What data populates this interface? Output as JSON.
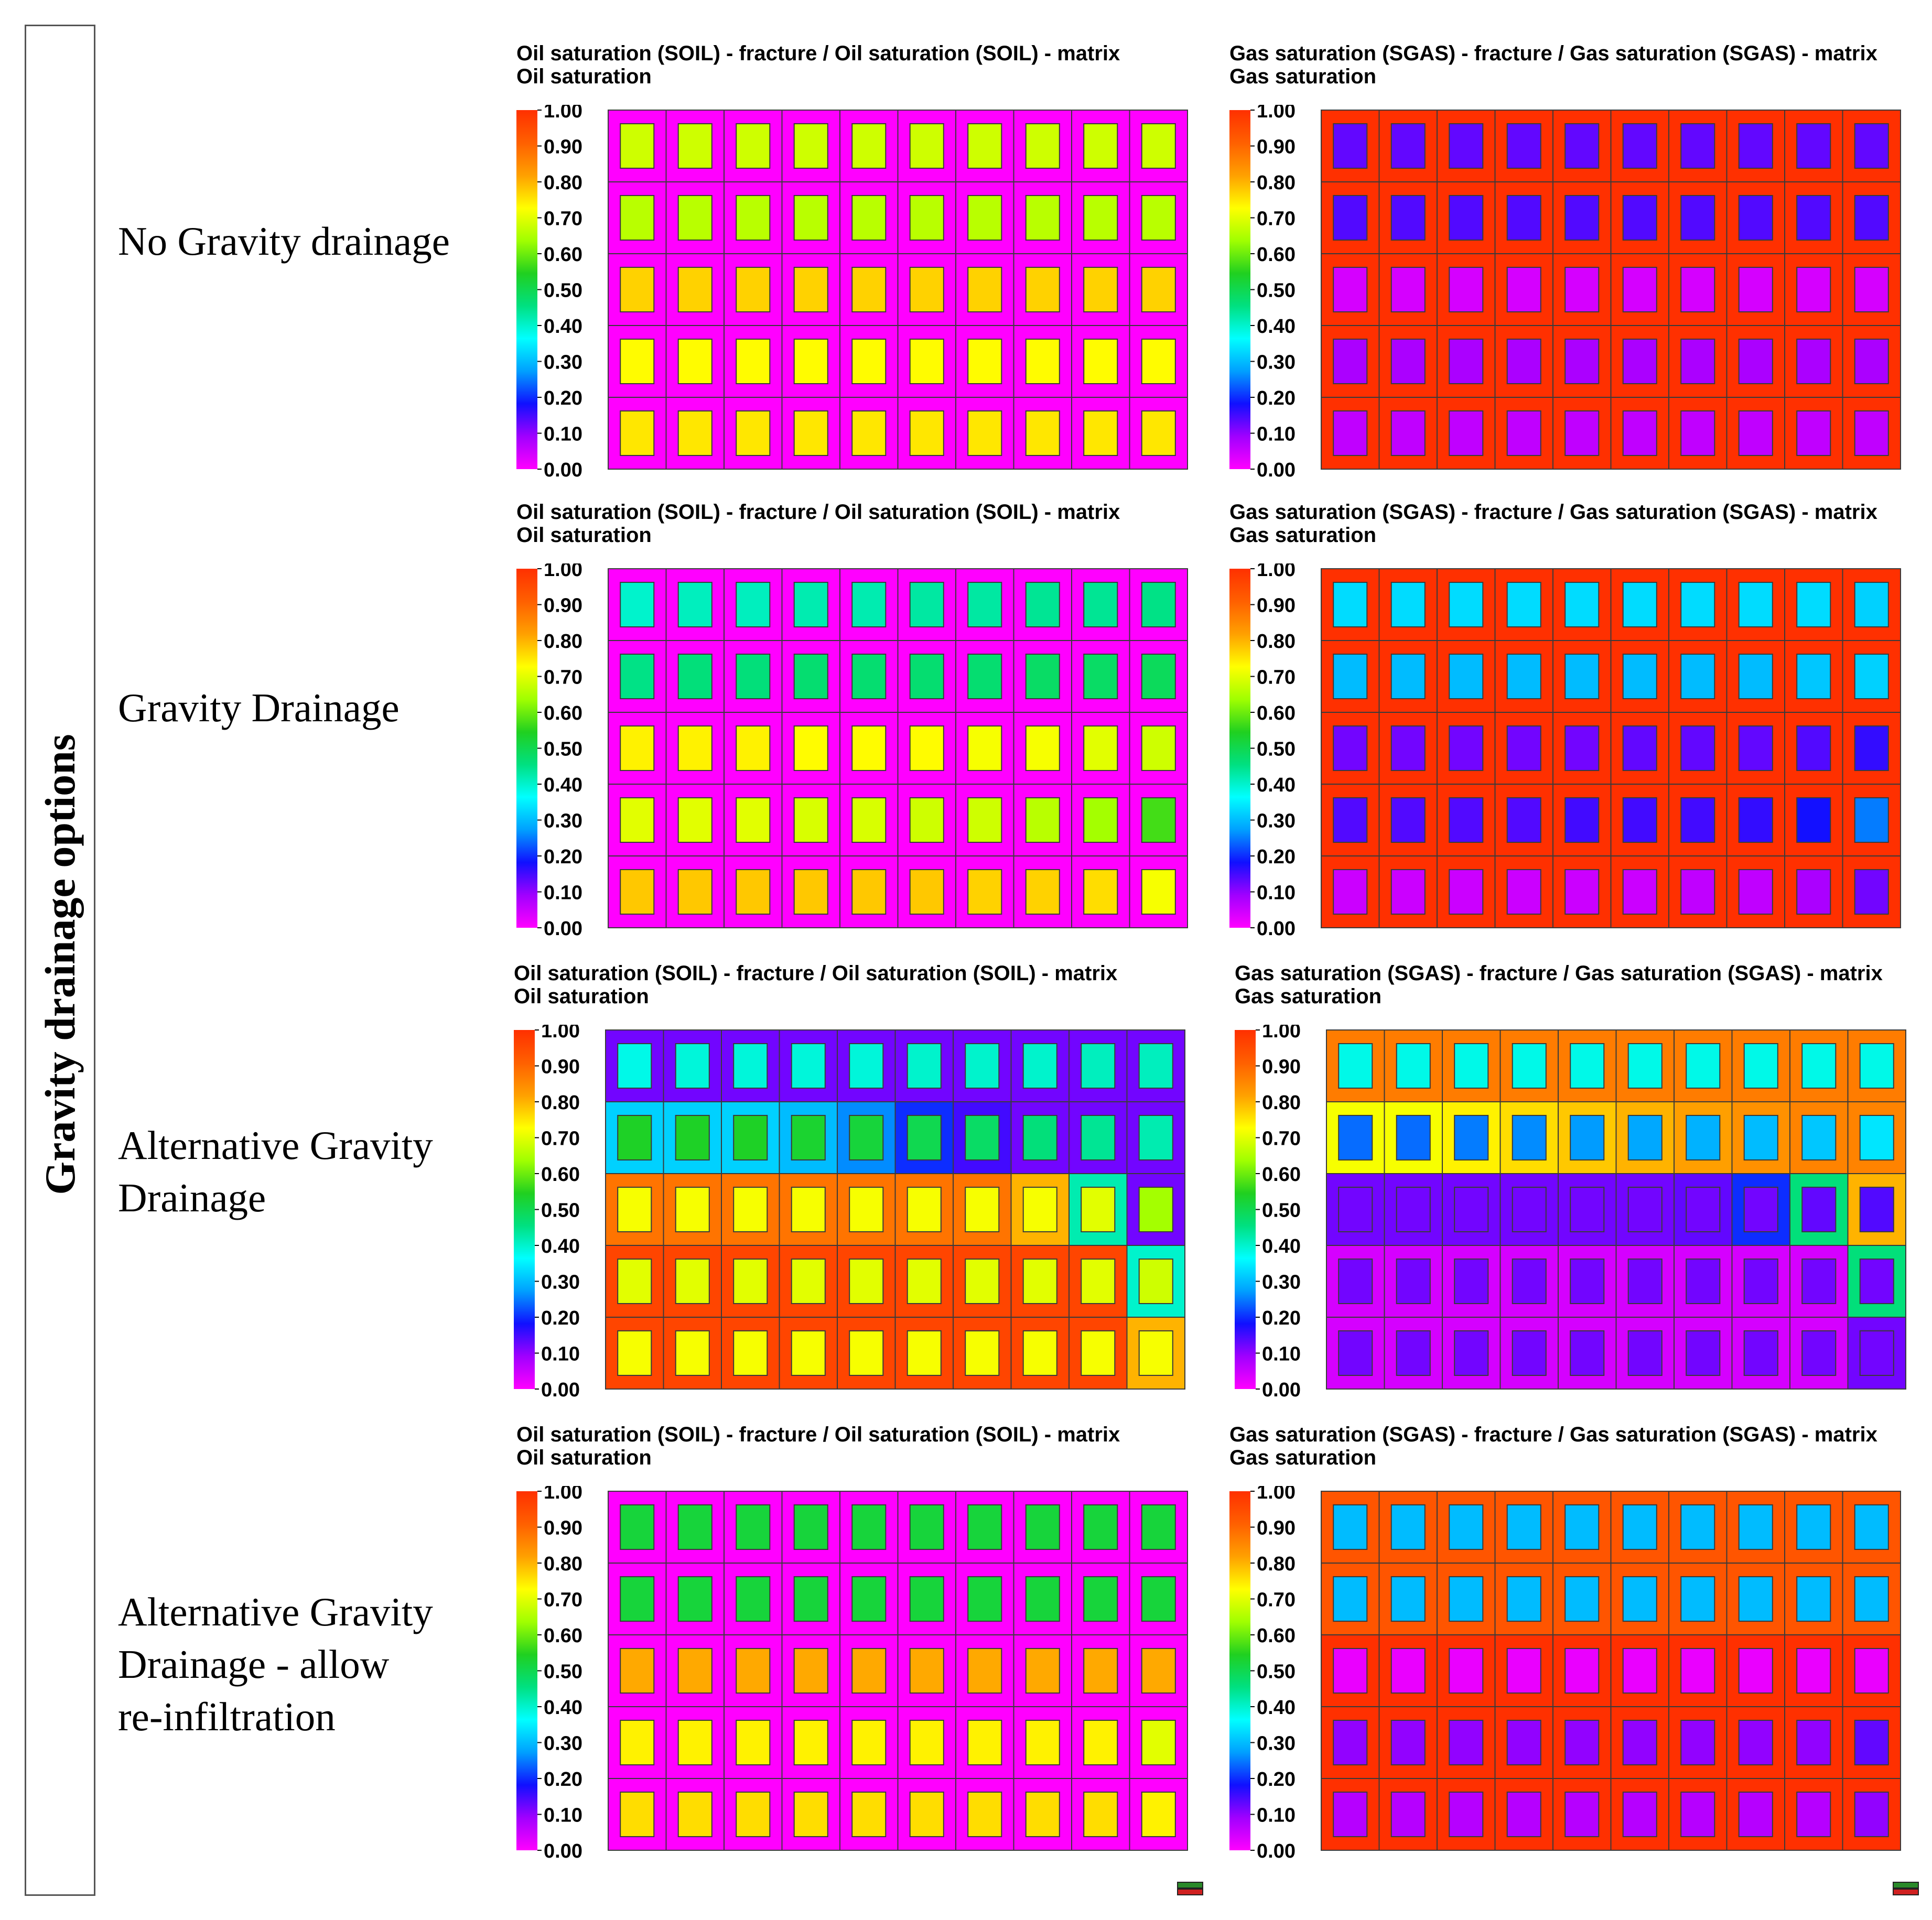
{
  "side_title": "Gravity drainage options",
  "row_labels": [
    "No Gravity drainage",
    "Gravity Drainage",
    "Alternative Gravity\nDrainage",
    "Alternative Gravity\nDrainage - allow\nre-infiltration"
  ],
  "colorbar": {
    "ticks": [
      "1.00",
      "0.90",
      "0.80",
      "0.70",
      "0.60",
      "0.50",
      "0.40",
      "0.30",
      "0.20",
      "0.10",
      "0.00"
    ],
    "stops": [
      "#ff00ff",
      "#a000ff",
      "#1010ff",
      "#00a0ff",
      "#00ffff",
      "#00e080",
      "#20d020",
      "#a0ff00",
      "#ffff00",
      "#ffa000",
      "#ff6000",
      "#ff3000"
    ]
  },
  "chart_data": [
    {
      "type": "heatmap",
      "title": "Oil saturation (SOIL) - fracture / Oil saturation (SOIL) - matrix",
      "subtitle": "Oil saturation",
      "colorbar_range": [
        0,
        1
      ],
      "fracture": [
        [
          0,
          0,
          0,
          0,
          0,
          0,
          0,
          0,
          0,
          0
        ],
        [
          0,
          0,
          0,
          0,
          0,
          0,
          0,
          0,
          0,
          0
        ],
        [
          0,
          0,
          0,
          0,
          0,
          0,
          0,
          0,
          0,
          0
        ],
        [
          0,
          0,
          0,
          0,
          0,
          0,
          0,
          0,
          0,
          0
        ],
        [
          0,
          0,
          0,
          0,
          0,
          0,
          0,
          0,
          0,
          0
        ]
      ],
      "matrix": [
        [
          0.68,
          0.68,
          0.68,
          0.68,
          0.68,
          0.68,
          0.68,
          0.68,
          0.68,
          0.68
        ],
        [
          0.66,
          0.66,
          0.66,
          0.66,
          0.66,
          0.66,
          0.66,
          0.66,
          0.66,
          0.66
        ],
        [
          0.77,
          0.77,
          0.77,
          0.77,
          0.77,
          0.77,
          0.77,
          0.77,
          0.77,
          0.77
        ],
        [
          0.73,
          0.73,
          0.73,
          0.73,
          0.73,
          0.73,
          0.73,
          0.73,
          0.73,
          0.73
        ],
        [
          0.75,
          0.75,
          0.75,
          0.75,
          0.75,
          0.75,
          0.75,
          0.75,
          0.75,
          0.75
        ]
      ]
    },
    {
      "type": "heatmap",
      "title": "Gas saturation (SGAS) - fracture / Gas saturation (SGAS) - matrix",
      "subtitle": "Gas saturation",
      "colorbar_range": [
        0,
        1
      ],
      "fracture": [
        [
          1,
          1,
          1,
          1,
          1,
          1,
          1,
          1,
          1,
          1
        ],
        [
          1,
          1,
          1,
          1,
          1,
          1,
          1,
          1,
          1,
          1
        ],
        [
          1,
          1,
          1,
          1,
          1,
          1,
          1,
          1,
          1,
          1
        ],
        [
          1,
          1,
          1,
          1,
          1,
          1,
          1,
          1,
          1,
          1
        ],
        [
          1,
          1,
          1,
          1,
          1,
          1,
          1,
          1,
          1,
          1
        ]
      ],
      "matrix": [
        [
          0.13,
          0.13,
          0.13,
          0.13,
          0.13,
          0.13,
          0.13,
          0.13,
          0.13,
          0.13
        ],
        [
          0.14,
          0.14,
          0.14,
          0.14,
          0.14,
          0.14,
          0.14,
          0.14,
          0.14,
          0.14
        ],
        [
          0.04,
          0.04,
          0.04,
          0.04,
          0.04,
          0.04,
          0.04,
          0.04,
          0.04,
          0.04
        ],
        [
          0.08,
          0.08,
          0.08,
          0.08,
          0.08,
          0.08,
          0.08,
          0.08,
          0.08,
          0.08
        ],
        [
          0.06,
          0.06,
          0.06,
          0.06,
          0.06,
          0.06,
          0.06,
          0.06,
          0.06,
          0.06
        ]
      ]
    },
    {
      "type": "heatmap",
      "title": "Oil saturation (SOIL) - fracture / Oil saturation (SOIL) - matrix",
      "subtitle": "Oil saturation",
      "colorbar_range": [
        0,
        1
      ],
      "fracture": [
        [
          0,
          0,
          0,
          0,
          0,
          0,
          0,
          0,
          0,
          0
        ],
        [
          0,
          0,
          0,
          0,
          0,
          0,
          0,
          0,
          0,
          0
        ],
        [
          0,
          0,
          0,
          0,
          0,
          0,
          0,
          0,
          0,
          0
        ],
        [
          0,
          0,
          0,
          0,
          0,
          0,
          0,
          0,
          0,
          0
        ],
        [
          0,
          0,
          0,
          0,
          0,
          0,
          0,
          0,
          0,
          0
        ]
      ],
      "matrix": [
        [
          0.4,
          0.41,
          0.41,
          0.42,
          0.42,
          0.43,
          0.43,
          0.44,
          0.44,
          0.45
        ],
        [
          0.45,
          0.46,
          0.46,
          0.47,
          0.47,
          0.47,
          0.47,
          0.48,
          0.48,
          0.49
        ],
        [
          0.74,
          0.74,
          0.74,
          0.73,
          0.73,
          0.73,
          0.72,
          0.72,
          0.7,
          0.68
        ],
        [
          0.7,
          0.7,
          0.7,
          0.69,
          0.69,
          0.68,
          0.68,
          0.66,
          0.64,
          0.57
        ],
        [
          0.78,
          0.78,
          0.78,
          0.78,
          0.78,
          0.78,
          0.77,
          0.77,
          0.76,
          0.72
        ]
      ]
    },
    {
      "type": "heatmap",
      "title": "Gas saturation (SGAS) - fracture / Gas saturation (SGAS) - matrix",
      "subtitle": "Gas saturation",
      "colorbar_range": [
        0,
        1
      ],
      "fracture": [
        [
          1,
          1,
          1,
          1,
          1,
          1,
          1,
          1,
          1,
          1
        ],
        [
          1,
          1,
          1,
          1,
          1,
          1,
          1,
          1,
          1,
          1
        ],
        [
          1,
          1,
          1,
          1,
          1,
          1,
          1,
          1,
          1,
          1
        ],
        [
          1,
          1,
          1,
          1,
          1,
          1,
          1,
          1,
          1,
          1
        ],
        [
          1,
          1,
          1,
          1,
          1,
          1,
          1,
          1,
          1,
          1
        ]
      ],
      "matrix": [
        [
          0.33,
          0.33,
          0.33,
          0.33,
          0.33,
          0.33,
          0.33,
          0.33,
          0.33,
          0.32
        ],
        [
          0.3,
          0.3,
          0.3,
          0.3,
          0.3,
          0.3,
          0.3,
          0.3,
          0.31,
          0.32
        ],
        [
          0.12,
          0.12,
          0.12,
          0.12,
          0.12,
          0.13,
          0.13,
          0.13,
          0.14,
          0.16
        ],
        [
          0.14,
          0.14,
          0.14,
          0.14,
          0.15,
          0.15,
          0.15,
          0.16,
          0.18,
          0.25
        ],
        [
          0.05,
          0.05,
          0.05,
          0.05,
          0.05,
          0.05,
          0.06,
          0.06,
          0.08,
          0.12
        ]
      ]
    },
    {
      "type": "heatmap",
      "title": "Oil saturation (SOIL) - fracture / Oil saturation (SOIL) - matrix",
      "subtitle": "Oil saturation",
      "colorbar_range": [
        0,
        1
      ],
      "fracture": [
        [
          0.12,
          0.12,
          0.12,
          0.12,
          0.12,
          0.12,
          0.12,
          0.12,
          0.12,
          0.12
        ],
        [
          0.32,
          0.32,
          0.32,
          0.3,
          0.26,
          0.2,
          0.15,
          0.12,
          0.12,
          0.12
        ],
        [
          0.88,
          0.88,
          0.88,
          0.88,
          0.88,
          0.88,
          0.88,
          0.8,
          0.42,
          0.12
        ],
        [
          0.96,
          0.96,
          0.96,
          0.96,
          0.96,
          0.96,
          0.96,
          0.96,
          0.96,
          0.4
        ],
        [
          0.96,
          0.96,
          0.96,
          0.96,
          0.96,
          0.96,
          0.96,
          0.96,
          0.96,
          0.8
        ]
      ],
      "matrix": [
        [
          0.38,
          0.39,
          0.39,
          0.39,
          0.39,
          0.4,
          0.4,
          0.4,
          0.41,
          0.41
        ],
        [
          0.54,
          0.54,
          0.54,
          0.53,
          0.52,
          0.5,
          0.48,
          0.46,
          0.44,
          0.42
        ],
        [
          0.72,
          0.72,
          0.72,
          0.72,
          0.72,
          0.72,
          0.72,
          0.72,
          0.7,
          0.64
        ],
        [
          0.7,
          0.7,
          0.7,
          0.7,
          0.7,
          0.7,
          0.7,
          0.7,
          0.7,
          0.68
        ],
        [
          0.72,
          0.72,
          0.72,
          0.72,
          0.72,
          0.72,
          0.72,
          0.72,
          0.72,
          0.72
        ]
      ]
    },
    {
      "type": "heatmap",
      "title": "Gas saturation (SGAS) - fracture / Gas saturation (SGAS) - matrix",
      "subtitle": "Gas saturation",
      "colorbar_range": [
        0,
        1
      ],
      "fracture": [
        [
          0.87,
          0.87,
          0.87,
          0.87,
          0.87,
          0.87,
          0.87,
          0.87,
          0.87,
          0.87
        ],
        [
          0.72,
          0.72,
          0.74,
          0.76,
          0.78,
          0.8,
          0.82,
          0.84,
          0.86,
          0.86
        ],
        [
          0.12,
          0.12,
          0.12,
          0.12,
          0.12,
          0.12,
          0.13,
          0.2,
          0.46,
          0.8
        ],
        [
          0.04,
          0.04,
          0.04,
          0.04,
          0.04,
          0.04,
          0.04,
          0.04,
          0.04,
          0.46
        ],
        [
          0.04,
          0.04,
          0.04,
          0.04,
          0.04,
          0.04,
          0.04,
          0.04,
          0.04,
          0.12
        ]
      ],
      "matrix": [
        [
          0.38,
          0.38,
          0.38,
          0.38,
          0.38,
          0.38,
          0.38,
          0.38,
          0.38,
          0.38
        ],
        [
          0.24,
          0.24,
          0.25,
          0.26,
          0.27,
          0.28,
          0.29,
          0.3,
          0.31,
          0.34
        ],
        [
          0.12,
          0.12,
          0.12,
          0.12,
          0.12,
          0.12,
          0.12,
          0.12,
          0.13,
          0.14
        ],
        [
          0.12,
          0.12,
          0.12,
          0.12,
          0.12,
          0.12,
          0.12,
          0.12,
          0.12,
          0.12
        ],
        [
          0.12,
          0.12,
          0.12,
          0.12,
          0.12,
          0.12,
          0.12,
          0.12,
          0.12,
          0.12
        ]
      ]
    },
    {
      "type": "heatmap",
      "title": "Oil saturation (SOIL) - fracture / Oil saturation (SOIL) - matrix",
      "subtitle": "Oil saturation",
      "colorbar_range": [
        0,
        1
      ],
      "fracture": [
        [
          0,
          0,
          0,
          0,
          0,
          0,
          0,
          0,
          0,
          0
        ],
        [
          0,
          0,
          0,
          0,
          0,
          0,
          0,
          0,
          0,
          0
        ],
        [
          0,
          0,
          0,
          0,
          0,
          0,
          0,
          0,
          0,
          0
        ],
        [
          0,
          0,
          0,
          0,
          0,
          0,
          0,
          0,
          0,
          0
        ],
        [
          0,
          0,
          0,
          0,
          0,
          0,
          0,
          0,
          0,
          0
        ]
      ],
      "matrix": [
        [
          0.52,
          0.52,
          0.52,
          0.52,
          0.52,
          0.52,
          0.52,
          0.52,
          0.52,
          0.52
        ],
        [
          0.52,
          0.52,
          0.52,
          0.52,
          0.52,
          0.52,
          0.52,
          0.52,
          0.52,
          0.52
        ],
        [
          0.81,
          0.81,
          0.81,
          0.81,
          0.81,
          0.81,
          0.81,
          0.81,
          0.81,
          0.81
        ],
        [
          0.74,
          0.74,
          0.74,
          0.74,
          0.74,
          0.74,
          0.74,
          0.74,
          0.74,
          0.7
        ],
        [
          0.76,
          0.76,
          0.76,
          0.76,
          0.76,
          0.76,
          0.76,
          0.76,
          0.76,
          0.74
        ]
      ]
    },
    {
      "type": "heatmap",
      "title": "Gas saturation (SGAS) - fracture / Gas saturation (SGAS) - matrix",
      "subtitle": "Gas saturation",
      "colorbar_range": [
        0,
        1
      ],
      "fracture": [
        [
          0.93,
          0.93,
          0.93,
          0.93,
          0.93,
          0.93,
          0.93,
          0.93,
          0.93,
          0.93
        ],
        [
          0.93,
          0.93,
          0.93,
          0.93,
          0.93,
          0.93,
          0.93,
          0.93,
          0.93,
          0.93
        ],
        [
          1,
          1,
          1,
          1,
          1,
          1,
          1,
          1,
          1,
          1
        ],
        [
          1,
          1,
          1,
          1,
          1,
          1,
          1,
          1,
          1,
          1
        ],
        [
          1,
          1,
          1,
          1,
          1,
          1,
          1,
          1,
          1,
          1
        ]
      ],
      "matrix": [
        [
          0.3,
          0.3,
          0.3,
          0.3,
          0.3,
          0.3,
          0.3,
          0.3,
          0.3,
          0.3
        ],
        [
          0.3,
          0.3,
          0.3,
          0.3,
          0.3,
          0.3,
          0.3,
          0.3,
          0.3,
          0.3
        ],
        [
          0.02,
          0.02,
          0.02,
          0.02,
          0.02,
          0.02,
          0.02,
          0.02,
          0.02,
          0.02
        ],
        [
          0.1,
          0.1,
          0.1,
          0.1,
          0.1,
          0.1,
          0.1,
          0.1,
          0.1,
          0.13
        ],
        [
          0.07,
          0.07,
          0.07,
          0.07,
          0.07,
          0.07,
          0.07,
          0.07,
          0.07,
          0.1
        ]
      ]
    }
  ]
}
